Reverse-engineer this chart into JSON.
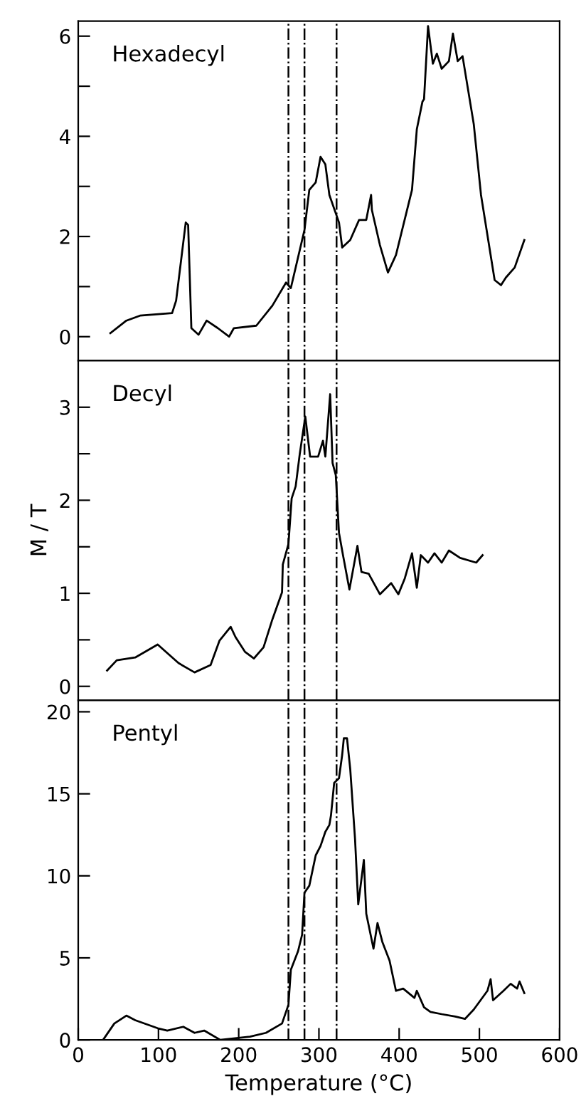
{
  "chart_data": [
    {
      "type": "line",
      "tick_labels": "y",
      "xlim": [
        0,
        600
      ],
      "ylim": [
        -0.48,
        6.3
      ],
      "yticks": [
        0,
        {
          "value": 1,
          "label": null
        },
        2,
        {
          "value": 3,
          "label": null
        },
        4,
        {
          "value": 5,
          "label": null
        },
        6
      ],
      "grid": false,
      "legend": false,
      "ref_lines": [
        {
          "axis": "x",
          "value": 262,
          "line_style": "dashdot"
        },
        {
          "axis": "x",
          "value": 282,
          "line_style": "dashdot"
        },
        {
          "axis": "x",
          "value": 322,
          "line_style": "dashdot"
        }
      ],
      "series": [
        {
          "name": "Hexadecyl",
          "color": "#000000",
          "x": [
            40,
            60,
            77,
            117,
            122,
            134,
            137,
            141,
            150,
            160,
            174,
            188,
            194,
            222,
            242,
            259,
            265,
            282,
            288,
            296,
            302,
            308,
            313,
            325,
            329,
            339,
            350,
            359,
            365,
            366,
            376,
            386,
            396,
            416,
            422,
            429,
            431,
            436,
            442,
            447,
            453,
            462,
            467,
            473,
            479,
            493,
            502,
            519,
            527,
            533,
            544,
            556
          ],
          "values": [
            0.07,
            0.32,
            0.42,
            0.47,
            0.72,
            2.28,
            2.23,
            0.17,
            0.04,
            0.32,
            0.17,
            0,
            0.17,
            0.22,
            0.62,
            1.08,
            0.97,
            2.13,
            2.93,
            3.08,
            3.59,
            3.44,
            2.83,
            2.28,
            1.78,
            1.93,
            2.33,
            2.33,
            2.83,
            2.53,
            1.83,
            1.28,
            1.63,
            2.93,
            4.14,
            4.69,
            4.74,
            6.2,
            5.45,
            5.65,
            5.35,
            5.5,
            6.05,
            5.5,
            5.6,
            4.24,
            2.83,
            1.13,
            1.03,
            1.18,
            1.38,
            1.93
          ]
        }
      ]
    },
    {
      "type": "line",
      "tick_labels": "y",
      "ylabel": "M / T",
      "xlim": [
        0,
        600
      ],
      "ylim": [
        -0.15,
        3.5
      ],
      "yticks": [
        0,
        {
          "value": 0.5,
          "label": null
        },
        1,
        {
          "value": 1.5,
          "label": null
        },
        2,
        {
          "value": 2.5,
          "label": null
        },
        3
      ],
      "grid": false,
      "legend": false,
      "ref_lines": [
        {
          "axis": "x",
          "value": 262,
          "line_style": "dashdot"
        },
        {
          "axis": "x",
          "value": 282,
          "line_style": "dashdot"
        },
        {
          "axis": "x",
          "value": 322,
          "line_style": "dashdot"
        }
      ],
      "series": [
        {
          "name": "Decyl",
          "color": "#000000",
          "x": [
            36,
            48,
            71,
            99,
            125,
            145,
            165,
            176,
            190,
            196,
            208,
            219,
            231,
            242,
            254,
            255,
            262,
            266,
            271,
            276,
            283,
            289,
            299,
            305,
            308,
            314,
            317,
            321,
            325,
            330,
            338,
            348,
            353,
            362,
            376,
            390,
            399,
            407,
            416,
            422,
            427,
            436,
            444,
            453,
            462,
            476,
            496,
            504
          ],
          "values": [
            0.17,
            0.28,
            0.31,
            0.45,
            0.25,
            0.15,
            0.23,
            0.49,
            0.64,
            0.53,
            0.37,
            0.3,
            0.42,
            0.72,
            1.01,
            1.31,
            1.53,
            2.02,
            2.15,
            2.49,
            2.9,
            2.47,
            2.47,
            2.64,
            2.47,
            3.14,
            2.4,
            2.27,
            1.65,
            1.41,
            1.04,
            1.51,
            1.23,
            1.21,
            0.99,
            1.11,
            0.99,
            1.16,
            1.43,
            1.06,
            1.41,
            1.33,
            1.43,
            1.33,
            1.46,
            1.38,
            1.33,
            1.41
          ]
        }
      ]
    },
    {
      "type": "line",
      "xlabel": "Temperature (°C)",
      "xlim": [
        0,
        600
      ],
      "xticks": [
        0,
        100,
        200,
        300,
        400,
        500,
        600
      ],
      "ylim": [
        0,
        20.7
      ],
      "yticks": [
        0,
        5,
        10,
        15,
        20
      ],
      "grid": false,
      "legend": false,
      "ref_lines": [
        {
          "axis": "x",
          "value": 262,
          "line_style": "dashdot"
        },
        {
          "axis": "x",
          "value": 282,
          "line_style": "dashdot"
        },
        {
          "axis": "x",
          "value": 322,
          "line_style": "dashdot"
        }
      ],
      "series": [
        {
          "name": "Pentyl",
          "color": "#000000",
          "x": [
            31,
            45,
            60,
            71,
            99,
            111,
            131,
            145,
            157,
            177,
            214,
            234,
            254,
            262,
            265,
            274,
            279,
            282,
            288,
            296,
            302,
            308,
            313,
            315,
            319,
            325,
            329,
            331,
            335,
            339,
            345,
            349,
            356,
            359,
            368,
            373,
            379,
            388,
            396,
            405,
            419,
            422,
            431,
            439,
            453,
            470,
            482,
            493,
            510,
            514,
            517,
            530,
            539,
            547,
            550,
            556
          ],
          "values": [
            0,
            1.0,
            1.48,
            1.2,
            0.71,
            0.57,
            0.8,
            0.43,
            0.57,
            0,
            0.2,
            0.43,
            1.0,
            2.14,
            4.27,
            5.41,
            6.41,
            8.97,
            9.4,
            11.25,
            11.82,
            12.68,
            13.1,
            13.68,
            15.67,
            15.95,
            17.38,
            18.38,
            18.38,
            16.52,
            12.25,
            8.26,
            10.97,
            7.69,
            5.56,
            7.12,
            5.98,
            4.84,
            2.99,
            3.13,
            2.56,
            2.99,
            1.99,
            1.71,
            1.57,
            1.42,
            1.28,
            1.85,
            2.99,
            3.7,
            2.42,
            2.99,
            3.42,
            3.13,
            3.56,
            2.85
          ]
        }
      ]
    }
  ]
}
